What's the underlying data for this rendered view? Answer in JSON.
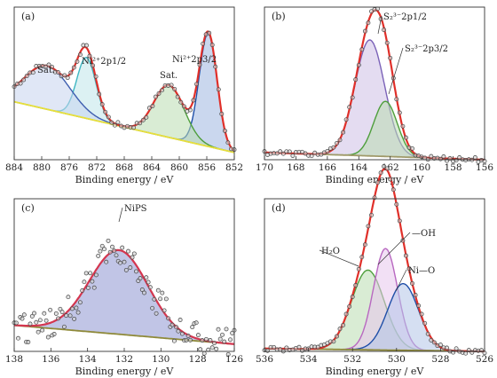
{
  "chart_data": [
    {
      "panel_label": "(a)",
      "type": "line",
      "xlabel": "Binding energy / eV",
      "xlim": [
        884,
        852
      ],
      "xticks": [
        884,
        880,
        876,
        872,
        868,
        864,
        860,
        856,
        852
      ],
      "annotations": [
        {
          "text": "Sat.",
          "x": 878.5
        },
        {
          "text": "Ni²⁺2p1/2",
          "x": 873.6
        },
        {
          "text": "Sat.",
          "x": 861.5
        },
        {
          "text": "Ni²⁺2p3/2",
          "x": 856.0
        }
      ],
      "peaks": [
        {
          "center": 855.8,
          "height": 0.78,
          "width": 1.3,
          "color": "#1f4fa8",
          "fill": "#9fb7e0"
        },
        {
          "center": 873.5,
          "height": 0.42,
          "width": 1.4,
          "color": "#3fb7c2",
          "fill": "#bfe6ea"
        },
        {
          "center": 861.5,
          "height": 0.36,
          "width": 2.2,
          "color": "#4e9e3c",
          "fill": "#b9ddb0"
        },
        {
          "center": 879.2,
          "height": 0.3,
          "width": 3.3,
          "color": "#3f5fb0",
          "fill": "#c7d3ee"
        }
      ],
      "baseline": {
        "left": 0.4,
        "right": 0.05,
        "color": "#e8df3a"
      },
      "envelope_color": "#e0302a"
    },
    {
      "panel_label": "(b)",
      "type": "line",
      "xlabel": "Binding energy / eV",
      "xlim": [
        170,
        156
      ],
      "xticks": [
        170,
        168,
        166,
        164,
        162,
        160,
        158,
        156
      ],
      "annotations": [
        {
          "text": "S₂³⁻2p1/2",
          "x": 163.0
        },
        {
          "text": "S₂³⁻2p3/2",
          "x": 162.1
        }
      ],
      "peaks": [
        {
          "center": 163.3,
          "height": 0.8,
          "width": 0.95,
          "color": "#7b62b8",
          "fill": "#cdbfe6"
        },
        {
          "center": 162.3,
          "height": 0.38,
          "width": 0.75,
          "color": "#4e9e3c",
          "fill": "#b9ddb0"
        }
      ],
      "baseline": {
        "left": 0.05,
        "right": 0.0,
        "color": "#a09a6a"
      },
      "envelope_color": "#e0302a"
    },
    {
      "panel_label": "(c)",
      "type": "line",
      "xlabel": "Binding energy / eV",
      "xlim": [
        138,
        126
      ],
      "xticks": [
        138,
        136,
        134,
        132,
        130,
        128,
        126
      ],
      "annotations": [
        {
          "text": "NiPS",
          "x": 132.3
        }
      ],
      "peaks": [
        {
          "center": 132.3,
          "height": 0.58,
          "width": 1.6,
          "color": "#4a55a8",
          "fill": "#8e96d2"
        }
      ],
      "baseline": {
        "left": 0.18,
        "right": 0.05,
        "color": "#8f8a3a"
      },
      "envelope_color": "#d4364f"
    },
    {
      "panel_label": "(d)",
      "type": "line",
      "xlabel": "Binding energy / eV",
      "xlim": [
        536,
        526
      ],
      "xticks": [
        536,
        534,
        532,
        530,
        528,
        526
      ],
      "annotations": [
        {
          "text": "H₂O",
          "x": 531.3
        },
        {
          "text": "—OH",
          "x": 530.6
        },
        {
          "text": "Ni—O",
          "x": 529.8
        }
      ],
      "peaks": [
        {
          "center": 531.3,
          "height": 0.55,
          "width": 0.75,
          "color": "#4e9e3c",
          "fill": "#b9ddb0"
        },
        {
          "center": 530.5,
          "height": 0.7,
          "width": 0.55,
          "color": "#b868c0",
          "fill": "#e8c6ec"
        },
        {
          "center": 529.7,
          "height": 0.46,
          "width": 0.7,
          "color": "#1f4fa8",
          "fill": "#b2c4e8"
        }
      ],
      "baseline": {
        "left": 0.02,
        "right": 0.0,
        "color": "#8f8a3a"
      },
      "envelope_color": "#e0302a"
    }
  ]
}
